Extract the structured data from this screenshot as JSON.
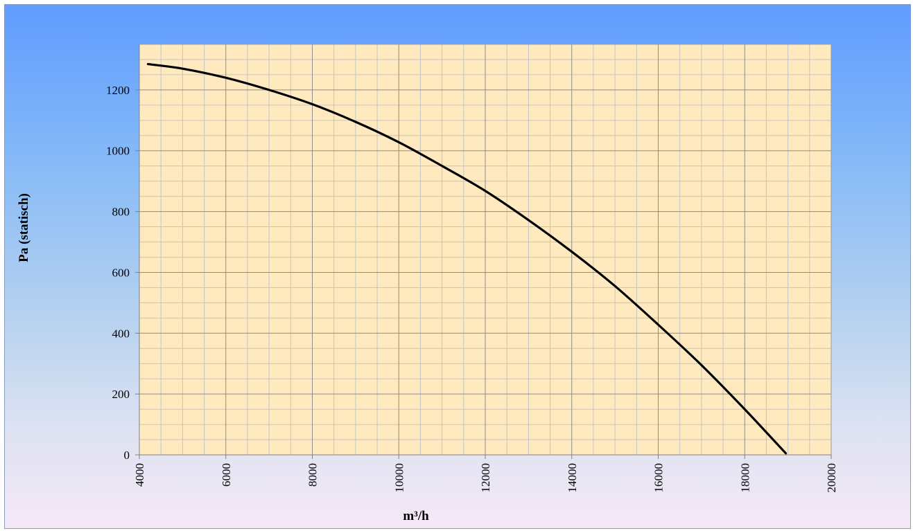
{
  "chart_data": {
    "type": "line",
    "title": "",
    "xlabel": "m³/h",
    "ylabel": "Pa (statisch)",
    "xlim": [
      4000,
      20000
    ],
    "ylim": [
      0,
      1350
    ],
    "xticks": [
      4000,
      6000,
      8000,
      10000,
      12000,
      14000,
      16000,
      18000,
      20000
    ],
    "yticks": [
      0,
      200,
      400,
      600,
      800,
      1000,
      1200
    ],
    "grid": true,
    "legend": "none",
    "series": [
      {
        "x": [
          4200,
          5000,
          6000,
          7000,
          8000,
          9000,
          10000,
          11000,
          12000,
          13000,
          14000,
          15000,
          16000,
          17000,
          18000,
          18950
        ],
        "y": [
          1285,
          1270,
          1240,
          1200,
          1153,
          1095,
          1028,
          950,
          868,
          772,
          668,
          555,
          428,
          295,
          150,
          5
        ]
      }
    ],
    "colors": {
      "plot_background": "#ffe9bf",
      "major_grid": "#8c8c8c",
      "minor_grid": "#c4c4c4",
      "line": "#000000"
    }
  }
}
